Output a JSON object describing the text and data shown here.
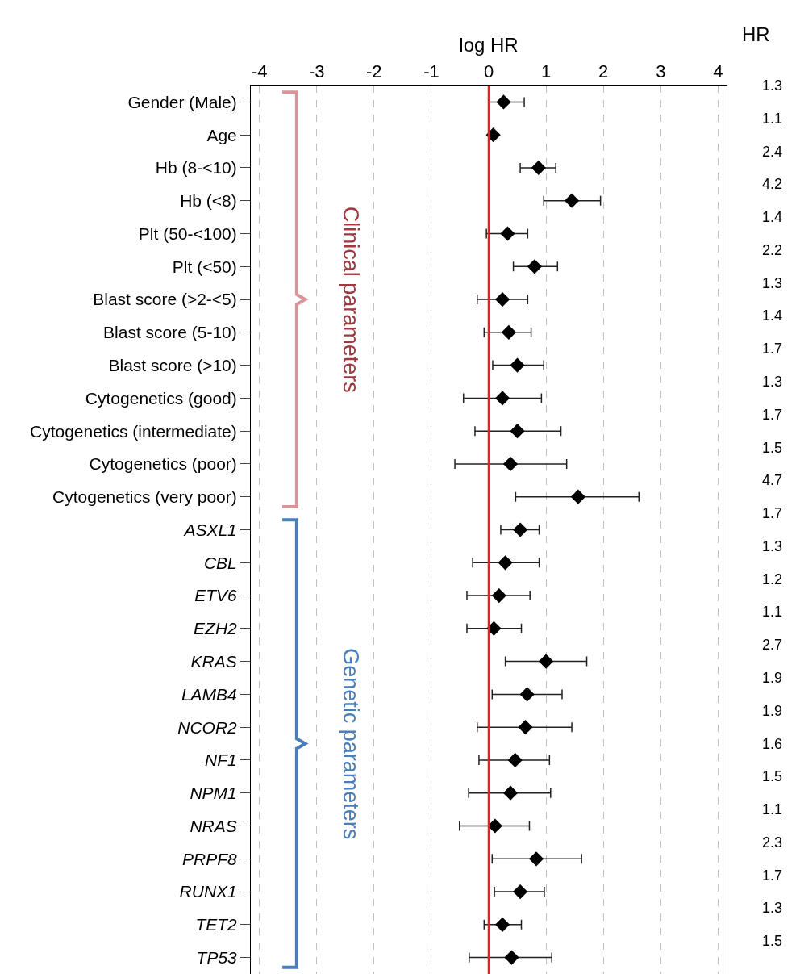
{
  "chart_data": {
    "type": "scatter",
    "xlabel": "log HR",
    "marker": "diamond",
    "grid": "x",
    "legend": false,
    "categories": [
      "Gender (Male)",
      "Age",
      "Hb (8-<10)",
      "Hb (<8)",
      "Plt (50-<100)",
      "Plt (<50)",
      "Blast score (>2-<5)",
      "Blast score (5-10)",
      "Blast score (>10)",
      "Cytogenetics (good)",
      "Cytogenetics (intermediate)",
      "Cytogenetics (poor)",
      "Cytogenetics (very poor)",
      "ASXL1",
      "CBL",
      "ETV6",
      "EZH2",
      "KRAS",
      "LAMB4",
      "NCOR2",
      "NF1",
      "NPM1",
      "NRAS",
      "PRPF8",
      "RUNX1",
      "TET2",
      "TP53"
    ],
    "series": [
      {
        "color": "#000000",
        "values": [
          0.26,
          0.08,
          0.87,
          1.45,
          0.33,
          0.8,
          0.24,
          0.35,
          0.5,
          0.24,
          0.5,
          0.38,
          1.56,
          0.55,
          0.29,
          0.18,
          0.09,
          1.0,
          0.67,
          0.64,
          0.46,
          0.38,
          0.11,
          0.83,
          0.55,
          0.24,
          0.4
        ],
        "errors": [
          [
            0.0,
            0.62
          ],
          null,
          [
            0.55,
            1.17
          ],
          [
            0.96,
            1.95
          ],
          [
            -0.04,
            0.68
          ],
          [
            0.43,
            1.2
          ],
          [
            -0.2,
            0.68
          ],
          [
            -0.08,
            0.74
          ],
          [
            0.07,
            0.96
          ],
          [
            -0.44,
            0.92
          ],
          [
            -0.24,
            1.26
          ],
          [
            -0.59,
            1.36
          ],
          [
            0.47,
            2.62
          ],
          [
            0.21,
            0.88
          ],
          [
            -0.28,
            0.88
          ],
          [
            -0.38,
            0.72
          ],
          [
            -0.38,
            0.57
          ],
          [
            0.29,
            1.71
          ],
          [
            0.06,
            1.28
          ],
          [
            -0.2,
            1.45
          ],
          [
            -0.17,
            1.06
          ],
          [
            -0.35,
            1.08
          ],
          [
            -0.51,
            0.71
          ],
          [
            0.06,
            1.62
          ],
          [
            0.1,
            0.97
          ],
          [
            -0.08,
            0.57
          ],
          [
            -0.34,
            1.1
          ]
        ]
      }
    ],
    "orientation": "horizontal",
    "xlim": [
      -4.15,
      4.15
    ],
    "xticks": [
      -4,
      -3,
      -2,
      -1,
      0,
      1,
      2,
      3,
      4
    ],
    "ref_lines": [
      {
        "axis": "x",
        "value": 0,
        "color": "#ee1c1c"
      }
    ],
    "annotations": [
      "HR",
      "Clinical parameters",
      "Genetic parameters",
      "1.3",
      "1.1",
      "2.4",
      "4.2",
      "1.4",
      "2.2",
      "1.3",
      "1.4",
      "1.7",
      "1.3",
      "1.7",
      "1.5",
      "4.7",
      "1.7",
      "1.3",
      "1.2",
      "1.1",
      "2.7",
      "1.9",
      "1.9",
      "1.6",
      "1.5",
      "1.1",
      "2.3",
      "1.7",
      "1.3",
      "1.5"
    ]
  }
}
